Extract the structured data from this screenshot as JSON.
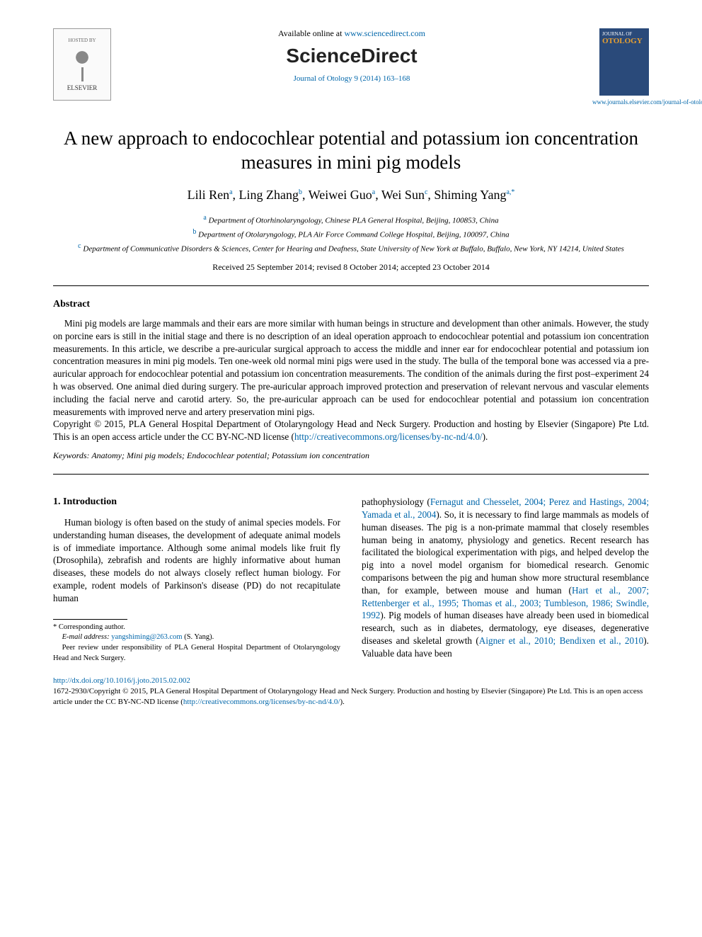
{
  "header": {
    "hosted_by": "HOSTED BY",
    "elsevier": "ELSEVIER",
    "available_prefix": "Available online at ",
    "available_url": "www.sciencedirect.com",
    "sd_logo": "ScienceDirect",
    "citation": "Journal of Otology 9 (2014) 163–168",
    "journal_cover_top": "JOURNAL OF",
    "journal_cover_main": "OTOLOGY",
    "journal_url": "www.journals.elsevier.com/journal-of-otology/"
  },
  "title": "A new approach to endocochlear potential and potassium ion concentration measures in mini pig models",
  "authors": [
    {
      "name": "Lili Ren",
      "aff": "a"
    },
    {
      "name": "Ling Zhang",
      "aff": "b"
    },
    {
      "name": "Weiwei Guo",
      "aff": "a"
    },
    {
      "name": "Wei Sun",
      "aff": "c"
    },
    {
      "name": "Shiming Yang",
      "aff": "a,",
      "star": "*"
    }
  ],
  "affiliations": {
    "a": "Department of Otorhinolaryngology, Chinese PLA General Hospital, Beijing, 100853, China",
    "b": "Department of Otolaryngology, PLA Air Force Command College Hospital, Beijing, 100097, China",
    "c": "Department of Communicative Disorders & Sciences, Center for Hearing and Deafness, State University of New York at Buffalo, Buffalo, New York, NY 14214, United States"
  },
  "dates": "Received 25 September 2014; revised 8 October 2014; accepted 23 October 2014",
  "abstract": {
    "heading": "Abstract",
    "body": "Mini pig models are large mammals and their ears are more similar with human beings in structure and development than other animals. However, the study on porcine ears is still in the initial stage and there is no description of an ideal operation approach to endocochlear potential and potassium ion concentration measurements. In this article, we describe a pre-auricular surgical approach to access the middle and inner ear for endocochlear potential and potassium ion concentration measures in mini pig models. Ten one-week old normal mini pigs were used in the study. The bulla of the temporal bone was accessed via a pre-auricular approach for endocochlear potential and potassium ion concentration measurements. The condition of the animals during the first post–experiment 24 h was observed. One animal died during surgery. The pre-auricular approach improved protection and preservation of relevant nervous and vascular elements including the facial nerve and carotid artery. So, the pre-auricular approach can be used for endocochlear potential and potassium ion concentration measurements with improved nerve and artery preservation mini pigs.",
    "copyright_prefix": "Copyright © 2015, PLA General Hospital Department of Otolaryngology Head and Neck Surgery. Production and hosting by Elsevier (Singapore) Pte Ltd. This is an open access article under the CC BY-NC-ND license (",
    "cc_url": "http://creativecommons.org/licenses/by-nc-nd/4.0/",
    "copyright_suffix": ")."
  },
  "keywords": {
    "label": "Keywords:",
    "value": " Anatomy; Mini pig models; Endocochlear potential; Potassium ion concentration"
  },
  "intro": {
    "heading": "1. Introduction",
    "left": "Human biology is often based on the study of animal species models. For understanding human diseases, the development of adequate animal models is of immediate importance. Although some animal models like fruit fly (Drosophila), zebrafish and rodents are highly informative about human diseases, these models do not always closely reflect human biology. For example, rodent models of Parkinson's disease (PD) do not recapitulate human",
    "right_pre": "pathophysiology (",
    "right_cite1": "Fernagut and Chesselet, 2004; Perez and Hastings, 2004; Yamada et al., 2004",
    "right_mid1": "). So, it is necessary to find large mammals as models of human diseases. The pig is a non-primate mammal that closely resembles human being in anatomy, physiology and genetics. Recent research has facilitated the biological experimentation with pigs, and helped develop the pig into a novel model organism for biomedical research. Genomic comparisons between the pig and human show more structural resemblance than, for example, between mouse and human (",
    "right_cite2": "Hart et al., 2007; Rettenberger et al., 1995; Thomas et al., 2003; Tumbleson, 1986; Swindle, 1992",
    "right_mid2": "). Pig models of human diseases have already been used in biomedical research, such as in diabetes, dermatology, eye diseases, degenerative diseases and skeletal growth (",
    "right_cite3": "Aigner et al., 2010; Bendixen et al., 2010",
    "right_end": "). Valuable data have been"
  },
  "footnotes": {
    "corresp": "* Corresponding author.",
    "email_label": "E-mail address:",
    "email": "yangshiming@263.com",
    "email_person": " (S. Yang).",
    "peer": "Peer review under responsibility of PLA General Hospital Department of Otolaryngology Head and Neck Surgery."
  },
  "footer": {
    "doi": "http://dx.doi.org/10.1016/j.joto.2015.02.002",
    "issn_copy_prefix": "1672-2930/Copyright © 2015, PLA General Hospital Department of Otolaryngology Head and Neck Surgery. Production and hosting by Elsevier (Singapore) Pte Ltd. This is an open access article under the CC BY-NC-ND license (",
    "cc_url": "http://creativecommons.org/licenses/by-nc-nd/4.0/",
    "issn_copy_suffix": ")."
  },
  "colors": {
    "link": "#0066aa",
    "text": "#000000",
    "journal_bg": "#2a4a7a",
    "journal_accent": "#e8a030"
  }
}
